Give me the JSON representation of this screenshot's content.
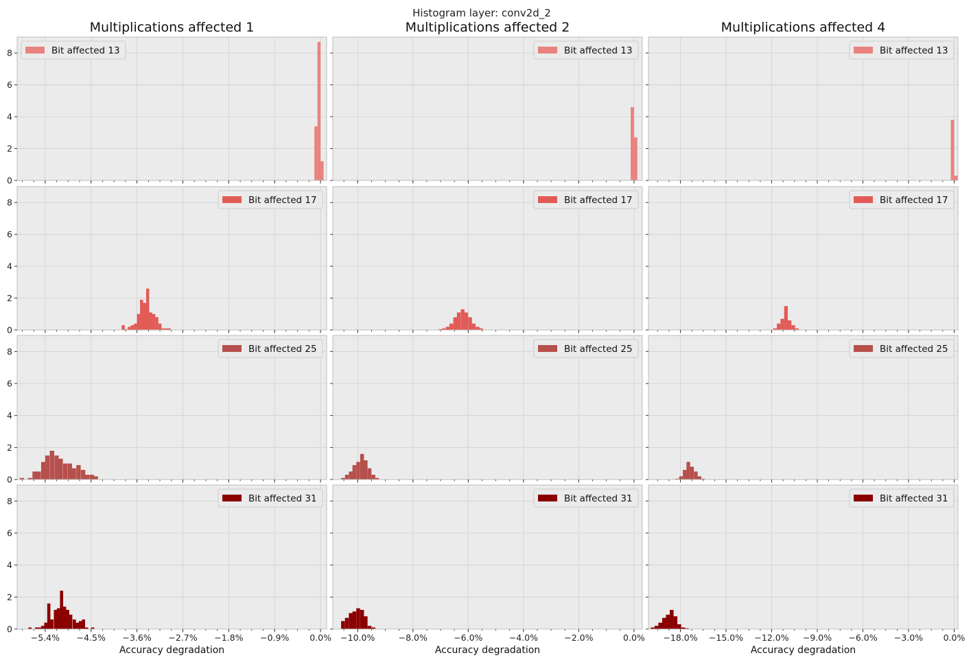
{
  "figure": {
    "suptitle": "Histogram layer: conv2d_2",
    "xlabel": "Accuracy degradation",
    "y_ticks": [
      0,
      2,
      4,
      6,
      8
    ],
    "ylim": [
      0,
      9
    ],
    "grid": true,
    "legend_position_col0": "top-left",
    "legend_position_other": "top-right"
  },
  "colors": {
    "background": "#ebebeb",
    "grid": "#d0d0d0",
    "bit13": "#e8837f",
    "bit17": "#e25b56",
    "bit25": "#b6504c",
    "bit31": "#8b0000"
  },
  "chart_data": [
    {
      "type": "bar",
      "title": "Multiplications affected 1",
      "xlabel": "Accuracy degradation",
      "xlim": [
        -5.95,
        0.12
      ],
      "x_ticks": [
        {
          "v": -5.4,
          "label": "−5.4%"
        },
        {
          "v": -4.5,
          "label": "−4.5%"
        },
        {
          "v": -3.6,
          "label": "−3.6%"
        },
        {
          "v": -2.7,
          "label": "−2.7%"
        },
        {
          "v": -1.8,
          "label": "−1.8%"
        },
        {
          "v": -0.9,
          "label": "−0.9%"
        },
        {
          "v": 0.0,
          "label": "0.0%"
        }
      ],
      "series": [
        {
          "name": "Bit affected 13",
          "color": "#e8837f",
          "bin_width": 0.06,
          "bins": [
            [
              -0.12,
              3.4
            ],
            [
              -0.06,
              8.7
            ],
            [
              0.0,
              1.2
            ]
          ]
        },
        {
          "name": "Bit affected 17",
          "color": "#e25b56",
          "bin_width": 0.06,
          "bins": [
            [
              -3.9,
              0.3
            ],
            [
              -3.84,
              0.05
            ],
            [
              -3.78,
              0.2
            ],
            [
              -3.72,
              0.3
            ],
            [
              -3.66,
              0.4
            ],
            [
              -3.6,
              1.0
            ],
            [
              -3.54,
              1.9
            ],
            [
              -3.48,
              1.7
            ],
            [
              -3.42,
              2.6
            ],
            [
              -3.36,
              1.1
            ],
            [
              -3.3,
              1.0
            ],
            [
              -3.24,
              0.8
            ],
            [
              -3.18,
              0.4
            ],
            [
              -3.12,
              0.1
            ],
            [
              -3.06,
              0.1
            ],
            [
              -3.0,
              0.1
            ]
          ]
        },
        {
          "name": "Bit affected 25",
          "color": "#b6504c",
          "bin_width": 0.086,
          "bins": [
            [
              -5.9,
              0.1
            ],
            [
              -5.74,
              0.1
            ],
            [
              -5.65,
              0.5
            ],
            [
              -5.57,
              0.5
            ],
            [
              -5.48,
              1.1
            ],
            [
              -5.4,
              1.5
            ],
            [
              -5.31,
              1.8
            ],
            [
              -5.22,
              1.5
            ],
            [
              -5.14,
              1.3
            ],
            [
              -5.05,
              1.0
            ],
            [
              -4.96,
              1.0
            ],
            [
              -4.88,
              0.7
            ],
            [
              -4.79,
              0.9
            ],
            [
              -4.7,
              0.6
            ],
            [
              -4.62,
              0.3
            ],
            [
              -4.53,
              0.3
            ],
            [
              -4.45,
              0.2
            ]
          ]
        },
        {
          "name": "Bit affected 31",
          "color": "#8b0000",
          "bin_width": 0.062,
          "bins": [
            [
              -5.73,
              0.1
            ],
            [
              -5.6,
              0.1
            ],
            [
              -5.54,
              0.1
            ],
            [
              -5.48,
              0.2
            ],
            [
              -5.42,
              0.4
            ],
            [
              -5.36,
              1.6
            ],
            [
              -5.3,
              0.6
            ],
            [
              -5.23,
              1.2
            ],
            [
              -5.17,
              1.3
            ],
            [
              -5.11,
              2.4
            ],
            [
              -5.05,
              1.4
            ],
            [
              -4.99,
              1.2
            ],
            [
              -4.93,
              0.9
            ],
            [
              -4.86,
              0.6
            ],
            [
              -4.8,
              0.4
            ],
            [
              -4.74,
              0.5
            ],
            [
              -4.68,
              0.6
            ],
            [
              -4.62,
              0.1
            ],
            [
              -4.5,
              0.1
            ]
          ]
        }
      ]
    },
    {
      "type": "bar",
      "title": "Multiplications affected 2",
      "xlabel": "Accuracy degradation",
      "xlim": [
        -10.9,
        0.3
      ],
      "x_ticks": [
        {
          "v": -10.0,
          "label": "−10.0%"
        },
        {
          "v": -8.0,
          "label": "−8.0%"
        },
        {
          "v": -6.0,
          "label": "−6.0%"
        },
        {
          "v": -4.0,
          "label": "−4.0%"
        },
        {
          "v": -2.0,
          "label": "−2.0%"
        },
        {
          "v": 0.0,
          "label": "0.0%"
        }
      ],
      "series": [
        {
          "name": "Bit affected 13",
          "color": "#e8837f",
          "bin_width": 0.12,
          "bins": [
            [
              -0.12,
              4.6
            ],
            [
              0.0,
              2.7
            ]
          ]
        },
        {
          "name": "Bit affected 17",
          "color": "#e25b56",
          "bin_width": 0.135,
          "bins": [
            [
              -7.08,
              0.05
            ],
            [
              -6.95,
              0.1
            ],
            [
              -6.81,
              0.2
            ],
            [
              -6.68,
              0.4
            ],
            [
              -6.54,
              0.8
            ],
            [
              -6.41,
              1.1
            ],
            [
              -6.27,
              1.3
            ],
            [
              -6.14,
              1.1
            ],
            [
              -6.0,
              0.8
            ],
            [
              -5.87,
              0.4
            ],
            [
              -5.73,
              0.2
            ],
            [
              -5.6,
              0.1
            ]
          ]
        },
        {
          "name": "Bit affected 25",
          "color": "#b6504c",
          "bin_width": 0.137,
          "bins": [
            [
              -10.6,
              0.1
            ],
            [
              -10.46,
              0.3
            ],
            [
              -10.32,
              0.5
            ],
            [
              -10.19,
              0.9
            ],
            [
              -10.05,
              1.1
            ],
            [
              -9.91,
              1.6
            ],
            [
              -9.78,
              1.2
            ],
            [
              -9.64,
              0.7
            ],
            [
              -9.5,
              0.3
            ],
            [
              -9.37,
              0.1
            ]
          ]
        },
        {
          "name": "Bit affected 31",
          "color": "#8b0000",
          "bin_width": 0.137,
          "bins": [
            [
              -10.6,
              0.5
            ],
            [
              -10.46,
              0.7
            ],
            [
              -10.32,
              1.0
            ],
            [
              -10.19,
              1.1
            ],
            [
              -10.05,
              1.3
            ],
            [
              -9.91,
              1.2
            ],
            [
              -9.78,
              0.8
            ],
            [
              -9.64,
              0.2
            ],
            [
              -9.5,
              0.1
            ]
          ]
        }
      ]
    },
    {
      "type": "bar",
      "title": "Multiplications affected 4",
      "xlabel": "Accuracy degradation",
      "xlim": [
        -20.1,
        0.25
      ],
      "x_ticks": [
        {
          "v": -18.0,
          "label": "−18.0%"
        },
        {
          "v": -15.0,
          "label": "−15.0%"
        },
        {
          "v": -12.0,
          "label": "−12.0%"
        },
        {
          "v": -9.0,
          "label": "−9.0%"
        },
        {
          "v": -6.0,
          "label": "−6.0%"
        },
        {
          "v": -3.0,
          "label": "−3.0%"
        },
        {
          "v": 0.0,
          "label": "0.0%"
        }
      ],
      "series": [
        {
          "name": "Bit affected 13",
          "color": "#e8837f",
          "bin_width": 0.22,
          "bins": [
            [
              -0.22,
              3.8
            ],
            [
              0.0,
              0.3
            ]
          ]
        },
        {
          "name": "Bit affected 17",
          "color": "#e25b56",
          "bin_width": 0.24,
          "bins": [
            [
              -11.9,
              0.1
            ],
            [
              -11.66,
              0.4
            ],
            [
              -11.42,
              0.7
            ],
            [
              -11.18,
              1.5
            ],
            [
              -10.94,
              0.6
            ],
            [
              -10.7,
              0.3
            ],
            [
              -10.46,
              0.1
            ]
          ]
        },
        {
          "name": "Bit affected 25",
          "color": "#b6504c",
          "bin_width": 0.242,
          "bins": [
            [
              -18.33,
              0.05
            ],
            [
              -18.08,
              0.2
            ],
            [
              -17.84,
              0.6
            ],
            [
              -17.6,
              1.1
            ],
            [
              -17.36,
              0.8
            ],
            [
              -17.11,
              0.5
            ],
            [
              -16.87,
              0.2
            ],
            [
              -16.63,
              0.05
            ]
          ]
        },
        {
          "name": "Bit affected 31",
          "color": "#8b0000",
          "bin_width": 0.25,
          "bins": [
            [
              -19.95,
              0.1
            ],
            [
              -19.7,
              0.2
            ],
            [
              -19.45,
              0.4
            ],
            [
              -19.2,
              0.7
            ],
            [
              -18.95,
              0.9
            ],
            [
              -18.7,
              1.2
            ],
            [
              -18.45,
              0.8
            ],
            [
              -18.2,
              0.3
            ],
            [
              -17.95,
              0.1
            ],
            [
              -17.7,
              0.05
            ]
          ]
        }
      ]
    }
  ]
}
